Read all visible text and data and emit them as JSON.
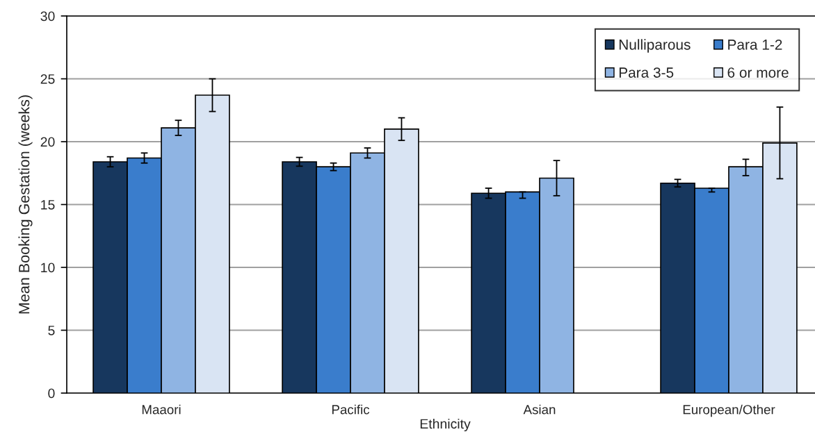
{
  "chart_data": {
    "type": "bar",
    "xlabel": "Ethnicity",
    "ylabel": "Mean Booking Gestation (weeks)",
    "categories": [
      "Maaori",
      "Pacific",
      "Asian",
      "European/Other"
    ],
    "series": [
      {
        "name": "Nulliparous",
        "color": "#17375e",
        "values": [
          18.4,
          18.4,
          15.9,
          16.7
        ],
        "errors": [
          0.4,
          0.35,
          0.4,
          0.3
        ]
      },
      {
        "name": "Para 1-2",
        "color": "#3a7dcc",
        "values": [
          18.7,
          18.0,
          16.0,
          16.3
        ],
        "errors": [
          0.4,
          0.3,
          [
            15.5,
            16.0
          ],
          [
            16.0,
            16.3
          ]
        ]
      },
      {
        "name": "Para 3-5",
        "color": "#8fb4e3",
        "values": [
          21.1,
          19.1,
          17.1,
          18.0
        ],
        "errors": [
          0.6,
          0.4,
          1.4,
          [
            17.3,
            18.6
          ]
        ]
      },
      {
        "name": "6 or more",
        "color": "#d9e4f3",
        "values": [
          23.7,
          21.0,
          null,
          19.9
        ],
        "errors": [
          1.3,
          0.9,
          null,
          2.85
        ]
      }
    ],
    "ylim": [
      0,
      30
    ],
    "yticks": [
      0,
      5,
      10,
      15,
      20,
      25,
      30
    ],
    "grid": "y",
    "legend": "top right"
  }
}
